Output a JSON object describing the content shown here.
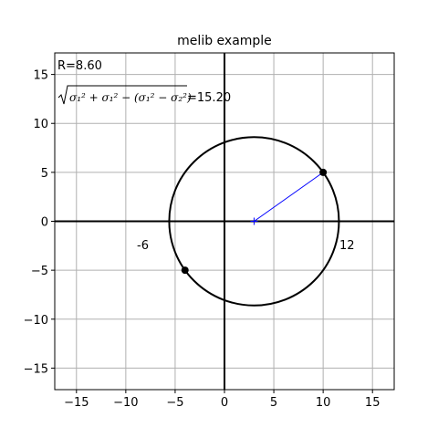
{
  "chart_data": {
    "type": "scatter",
    "title": "melib example",
    "xlabel": "",
    "ylabel": "",
    "xlim": [
      -17.2,
      17.2
    ],
    "ylim": [
      -17.2,
      17.2
    ],
    "x_ticks": [
      -15,
      -10,
      -5,
      0,
      5,
      10,
      15
    ],
    "y_ticks": [
      -15,
      -10,
      -5,
      0,
      5,
      10,
      15
    ],
    "x_tick_labels": [
      "−15",
      "−10",
      "−5",
      "0",
      "5",
      "10",
      "15"
    ],
    "y_tick_labels": [
      "−15",
      "−10",
      "−5",
      "0",
      "5",
      "10",
      "15"
    ],
    "grid": true,
    "circle": {
      "center": [
        3,
        0
      ],
      "radius": 8.6,
      "color": "#000000"
    },
    "points": [
      {
        "x": 10,
        "y": 5
      },
      {
        "x": -4,
        "y": -5
      }
    ],
    "center_marker": {
      "x": 3,
      "y": 0,
      "color": "#0000ff"
    },
    "radius_line": {
      "from": [
        3,
        0
      ],
      "to": [
        10,
        5
      ],
      "color": "#0000ff"
    },
    "annotations": {
      "radius_text": "R=8.60",
      "expr_text": "=15.20",
      "left_intercept": "-6",
      "right_intercept": "12"
    }
  }
}
